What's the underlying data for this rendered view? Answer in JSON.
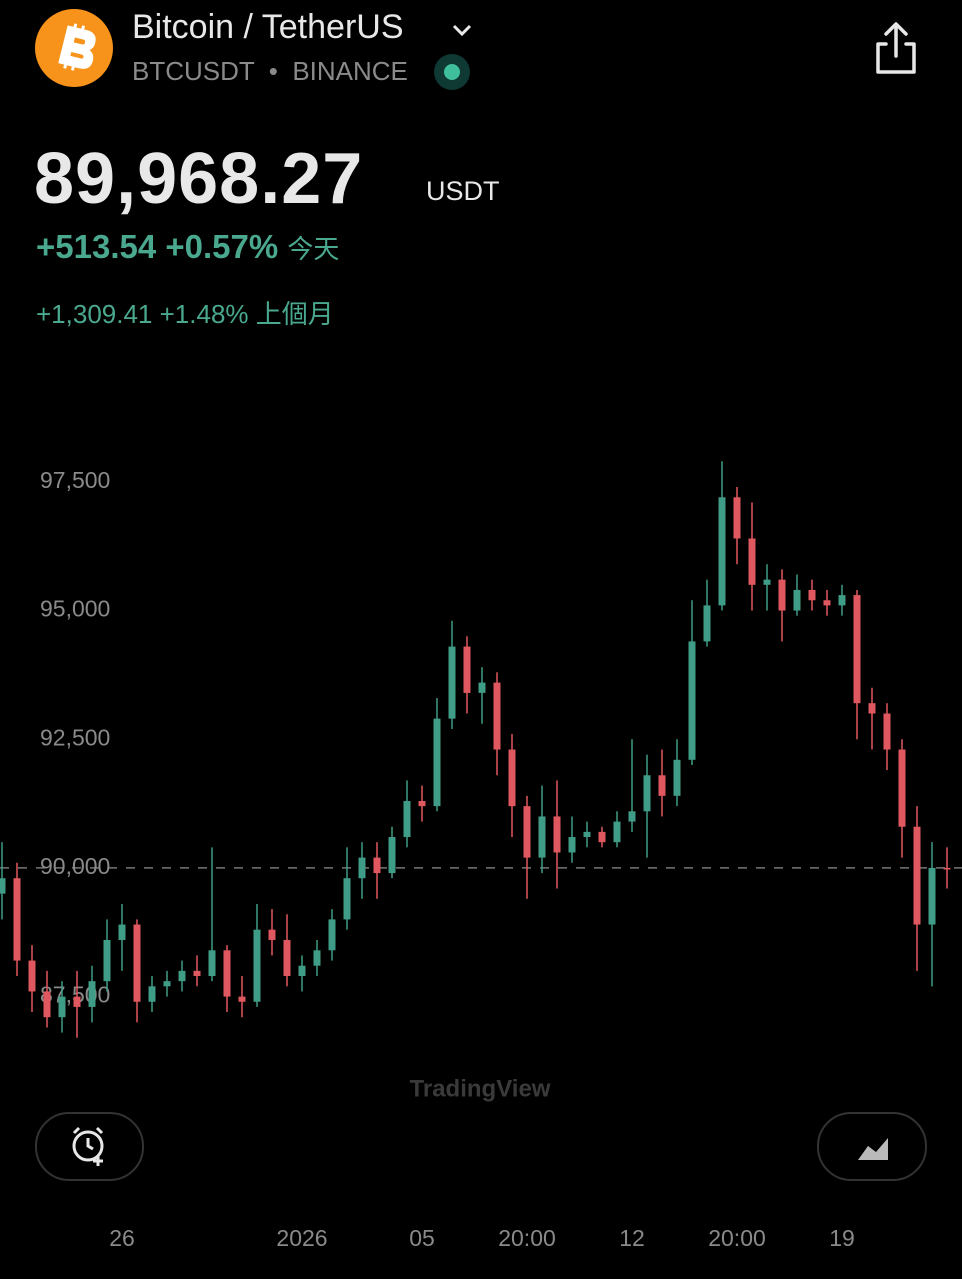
{
  "header": {
    "title": "Bitcoin / TetherUS",
    "symbol": "BTCUSDT",
    "exchange": "BINANCE",
    "price": "89,968.27",
    "currency": "USDT",
    "day_change": "+513.54",
    "day_change_pct": "+0.57%",
    "day_period": "今天",
    "month_change": "+1,309.41",
    "month_change_pct": "+1.48%",
    "month_period": "上個月"
  },
  "watermark": "TradingView",
  "chart_data": {
    "type": "candlestick",
    "categories": [
      null,
      null,
      null,
      null,
      null,
      null,
      null,
      null,
      "26",
      null,
      null,
      null,
      null,
      null,
      null,
      null,
      null,
      null,
      null,
      null,
      "2026",
      null,
      null,
      null,
      null,
      null,
      null,
      null,
      "05",
      null,
      null,
      null,
      null,
      null,
      null,
      "20:00",
      null,
      null,
      null,
      null,
      null,
      null,
      "12",
      null,
      null,
      null,
      null,
      null,
      null,
      "20:00",
      null,
      null,
      null,
      null,
      null,
      null,
      "19",
      null,
      null,
      null,
      null,
      null,
      null,
      null
    ],
    "open": [
      89500,
      89800,
      88200,
      87600,
      87100,
      87500,
      87300,
      87800,
      88600,
      88900,
      87400,
      87700,
      87800,
      88000,
      87900,
      88400,
      87500,
      87400,
      88800,
      88600,
      87900,
      88100,
      88400,
      89000,
      89800,
      90200,
      89900,
      90600,
      91300,
      91200,
      92900,
      94300,
      93400,
      93600,
      92300,
      91200,
      90200,
      91000,
      90300,
      90600,
      90700,
      90500,
      90900,
      91100,
      91800,
      91400,
      92100,
      94400,
      95100,
      97200,
      96400,
      95500,
      95600,
      95000,
      95400,
      95200,
      95100,
      95300,
      93200,
      93000,
      92300,
      90800,
      88900,
      90000
    ],
    "high": [
      90500,
      90100,
      88500,
      88000,
      87800,
      88000,
      88100,
      89000,
      89300,
      89000,
      87900,
      88000,
      88200,
      88300,
      90400,
      88500,
      87900,
      89300,
      89200,
      89100,
      88300,
      88600,
      89200,
      90400,
      90500,
      90500,
      90800,
      91700,
      91600,
      93300,
      94800,
      94500,
      93900,
      93800,
      92600,
      91400,
      91600,
      91700,
      91000,
      90900,
      90800,
      91100,
      92500,
      92200,
      92300,
      92500,
      95200,
      95600,
      97900,
      97400,
      97100,
      95900,
      95800,
      95700,
      95600,
      95400,
      95500,
      95400,
      93500,
      93200,
      92500,
      91200,
      90500,
      90400
    ],
    "low": [
      89000,
      87900,
      87200,
      86900,
      86800,
      86700,
      87000,
      87600,
      88000,
      87000,
      87200,
      87500,
      87600,
      87700,
      87800,
      87200,
      87100,
      87300,
      88300,
      87700,
      87600,
      87900,
      88200,
      88800,
      89400,
      89400,
      89800,
      90400,
      90900,
      91100,
      92700,
      93000,
      92800,
      91800,
      90600,
      89400,
      89900,
      89600,
      90100,
      90400,
      90400,
      90400,
      90700,
      90200,
      91000,
      91200,
      92000,
      94300,
      95000,
      95900,
      95000,
      95000,
      94400,
      94900,
      95000,
      94900,
      94900,
      92500,
      92300,
      91900,
      90200,
      88000,
      87700,
      89600
    ],
    "close": [
      89800,
      88200,
      87600,
      87100,
      87500,
      87300,
      87800,
      88600,
      88900,
      87400,
      87700,
      87800,
      88000,
      87900,
      88400,
      87500,
      87400,
      88800,
      88600,
      87900,
      88100,
      88400,
      89000,
      89800,
      90200,
      89900,
      90600,
      91300,
      91200,
      92900,
      94300,
      93400,
      93600,
      92300,
      91200,
      90200,
      91000,
      90300,
      90600,
      90700,
      90500,
      90900,
      91100,
      91800,
      91400,
      92100,
      94400,
      95100,
      97200,
      96400,
      95500,
      95600,
      95000,
      95400,
      95200,
      95100,
      95300,
      93200,
      93000,
      92300,
      90800,
      88900,
      90000,
      89970
    ],
    "up_color": "#3f9c86",
    "down_color": "#e0585f",
    "ylim": [
      85880,
      99090
    ],
    "yticks": [
      {
        "value": 87500,
        "label": "87,500"
      },
      {
        "value": 90000,
        "label": "90,000"
      },
      {
        "value": 92500,
        "label": "92,500"
      },
      {
        "value": 95000,
        "label": "95,000"
      },
      {
        "value": 97500,
        "label": "97,500"
      }
    ],
    "reference_line": 90000
  }
}
